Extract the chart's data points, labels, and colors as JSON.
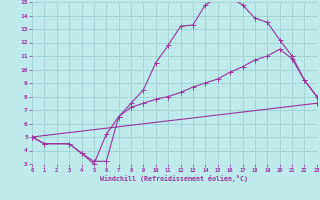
{
  "xlabel": "Windchill (Refroidissement éolien,°C)",
  "bg_color": "#beeaec",
  "grid_color": "#a0d0d2",
  "line_color": "#993399",
  "xlim": [
    0,
    23
  ],
  "ylim": [
    3,
    15
  ],
  "xticks": [
    0,
    1,
    2,
    3,
    4,
    5,
    6,
    7,
    8,
    9,
    10,
    11,
    12,
    13,
    14,
    15,
    16,
    17,
    18,
    19,
    20,
    21,
    22,
    23
  ],
  "yticks": [
    3,
    4,
    5,
    6,
    7,
    8,
    9,
    10,
    11,
    12,
    13,
    14,
    15
  ],
  "line1_x": [
    0,
    1,
    3,
    4,
    5,
    6,
    7,
    8,
    9,
    10,
    11,
    12,
    13,
    14,
    15,
    16,
    17,
    18,
    19,
    20,
    21,
    22,
    23
  ],
  "line1_y": [
    5,
    4.5,
    4.5,
    3.8,
    3.0,
    5.2,
    6.5,
    7.5,
    8.5,
    10.5,
    11.8,
    13.2,
    13.3,
    14.8,
    15.3,
    15.3,
    14.8,
    13.8,
    13.5,
    12.2,
    11.0,
    9.2,
    8.0
  ],
  "line2_x": [
    0,
    1,
    3,
    4,
    5,
    6,
    7,
    8,
    9,
    10,
    11,
    12,
    13,
    14,
    15,
    16,
    17,
    18,
    19,
    20,
    21,
    22,
    23
  ],
  "line2_y": [
    5,
    4.5,
    4.5,
    3.8,
    3.2,
    3.2,
    6.5,
    7.2,
    7.5,
    7.8,
    8.0,
    8.3,
    8.7,
    9.0,
    9.3,
    9.8,
    10.2,
    10.7,
    11.0,
    11.5,
    10.8,
    9.2,
    8.0
  ],
  "line3_x": [
    0,
    23
  ],
  "line3_y": [
    5.0,
    7.5
  ]
}
